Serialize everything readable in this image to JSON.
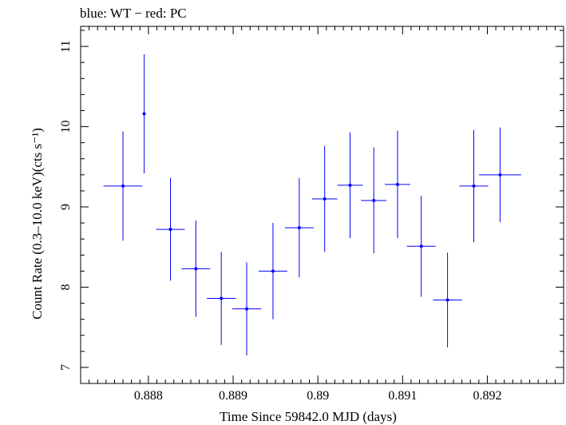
{
  "header": {
    "title": "blue: WT − red: PC"
  },
  "chart_data": {
    "type": "scatter",
    "title": "blue: WT − red: PC",
    "xlabel": "Time Since 59842.0 MJD (days)",
    "ylabel": "Count Rate (0.3–10.0 keV)(cts s⁻¹)",
    "xlim": [
      0.8872,
      0.8929
    ],
    "ylim": [
      6.8,
      11.25
    ],
    "x_ticks": [
      0.888,
      0.889,
      0.89,
      0.891,
      0.892
    ],
    "x_tick_labels": [
      "0.888",
      "0.889",
      "0.89",
      "0.891",
      "0.892"
    ],
    "y_ticks": [
      7,
      8,
      9,
      10,
      11
    ],
    "y_tick_labels": [
      "7",
      "8",
      "9",
      "10",
      "11"
    ],
    "grid": false,
    "series": [
      {
        "name": "WT",
        "color": "#0000ff",
        "points": [
          {
            "x": 0.8877,
            "xerr": 0.00023,
            "y": 9.26,
            "yerr": 0.68
          },
          {
            "x": 0.88795,
            "xerr": 0.0,
            "y": 10.16,
            "yerr": 0.74
          },
          {
            "x": 0.88826,
            "xerr": 0.00017,
            "y": 8.72,
            "yerr": 0.64
          },
          {
            "x": 0.88856,
            "xerr": 0.00017,
            "y": 8.23,
            "yerr": 0.6
          },
          {
            "x": 0.88886,
            "xerr": 0.00017,
            "y": 7.86,
            "yerr": 0.58
          },
          {
            "x": 0.88916,
            "xerr": 0.00017,
            "y": 7.73,
            "yerr": 0.58
          },
          {
            "x": 0.88947,
            "xerr": 0.00017,
            "y": 8.2,
            "yerr": 0.6
          },
          {
            "x": 0.88978,
            "xerr": 0.00017,
            "y": 8.74,
            "yerr": 0.62
          },
          {
            "x": 0.89008,
            "xerr": 0.00015,
            "y": 9.1,
            "yerr": 0.66
          },
          {
            "x": 0.89038,
            "xerr": 0.00015,
            "y": 9.27,
            "yerr": 0.66
          },
          {
            "x": 0.89066,
            "xerr": 0.00015,
            "y": 9.08,
            "yerr": 0.66
          },
          {
            "x": 0.89094,
            "xerr": 0.00015,
            "y": 9.28,
            "yerr": 0.67
          },
          {
            "x": 0.89122,
            "xerr": 0.00017,
            "y": 8.51,
            "yerr": 0.63
          },
          {
            "x": 0.89153,
            "xerr": 0.00017,
            "y": 7.84,
            "yerr": 0.59
          },
          {
            "x": 0.89184,
            "xerr": 0.00017,
            "y": 9.26,
            "yerr": 0.7
          },
          {
            "x": 0.89215,
            "xerr": 0.00025,
            "y": 9.4,
            "yerr": 0.59
          }
        ]
      }
    ]
  }
}
